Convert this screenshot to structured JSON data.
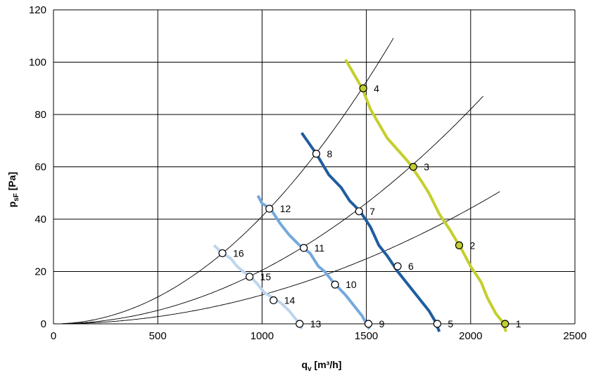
{
  "chart_data": {
    "type": "line",
    "xlabel": "q",
    "xlabel_sub": "v",
    "xlabel_unit": " [m³/h]",
    "ylabel": "p",
    "ylabel_sub": "sF",
    "ylabel_unit": " [Pa]",
    "xlim": [
      0,
      2500
    ],
    "ylim": [
      0,
      120
    ],
    "x_ticks": [
      0,
      500,
      1000,
      1500,
      2000,
      2500
    ],
    "y_ticks": [
      0,
      20,
      40,
      60,
      80,
      100,
      120
    ],
    "x_tick_labels": [
      "0",
      "500",
      "1000",
      "1500",
      "2000",
      "2500"
    ],
    "y_tick_labels": [
      "0",
      "20",
      "40",
      "60",
      "80",
      "100",
      "120"
    ],
    "grid": true,
    "fan_curves": [
      {
        "color": "#c4cf2e",
        "points": [
          [
            1400,
            101
          ],
          [
            1480,
            90
          ],
          [
            1520,
            82
          ],
          [
            1600,
            71
          ],
          [
            1700,
            62
          ],
          [
            1760,
            55
          ],
          [
            1800,
            50
          ],
          [
            1850,
            42
          ],
          [
            1900,
            36
          ],
          [
            1960,
            28
          ],
          [
            2000,
            22
          ],
          [
            2050,
            16
          ],
          [
            2080,
            10
          ],
          [
            2120,
            4
          ],
          [
            2150,
            1
          ],
          [
            2170,
            -3
          ]
        ]
      },
      {
        "color": "#1f5d9e",
        "points": [
          [
            1190,
            73
          ],
          [
            1260,
            65
          ],
          [
            1320,
            57
          ],
          [
            1380,
            52
          ],
          [
            1420,
            47
          ],
          [
            1470,
            43
          ],
          [
            1520,
            37
          ],
          [
            1560,
            30
          ],
          [
            1600,
            26
          ],
          [
            1650,
            20
          ],
          [
            1700,
            15
          ],
          [
            1750,
            10
          ],
          [
            1800,
            5
          ],
          [
            1830,
            1
          ],
          [
            1850,
            -3
          ]
        ]
      },
      {
        "color": "#74a9dc",
        "points": [
          [
            980,
            49
          ],
          [
            1000,
            46
          ],
          [
            1040,
            44
          ],
          [
            1090,
            38
          ],
          [
            1130,
            34
          ],
          [
            1180,
            30
          ],
          [
            1230,
            27
          ],
          [
            1270,
            22
          ],
          [
            1300,
            20
          ],
          [
            1340,
            16
          ],
          [
            1400,
            11
          ],
          [
            1440,
            7
          ],
          [
            1480,
            3
          ],
          [
            1500,
            0
          ],
          [
            1515,
            -2
          ]
        ]
      },
      {
        "color": "#bdd5ec",
        "points": [
          [
            770,
            30
          ],
          [
            810,
            27
          ],
          [
            850,
            25
          ],
          [
            880,
            22
          ],
          [
            910,
            20
          ],
          [
            945,
            18
          ],
          [
            980,
            15
          ],
          [
            1010,
            12
          ],
          [
            1050,
            10
          ],
          [
            1090,
            8
          ],
          [
            1130,
            5
          ],
          [
            1160,
            2
          ],
          [
            1180,
            0
          ],
          [
            1190,
            -2
          ]
        ]
      }
    ],
    "system_curves": [
      {
        "k": 1.104e-05,
        "x_max": 2140
      },
      {
        "k": 2.05e-05,
        "x_max": 2060
      },
      {
        "k": 4.11e-05,
        "x_max": 1630
      }
    ],
    "operating_points": [
      {
        "label": "1",
        "x": 2165,
        "y": 0,
        "fill": "#c4cf2e"
      },
      {
        "label": "2",
        "x": 1945,
        "y": 30,
        "fill": "#c4cf2e"
      },
      {
        "label": "3",
        "x": 1725,
        "y": 60,
        "fill": "#c4cf2e"
      },
      {
        "label": "4",
        "x": 1485,
        "y": 90,
        "fill": "#c4cf2e"
      },
      {
        "label": "5",
        "x": 1840,
        "y": 0,
        "fill": "#ffffff"
      },
      {
        "label": "6",
        "x": 1650,
        "y": 22,
        "fill": "#ffffff"
      },
      {
        "label": "7",
        "x": 1465,
        "y": 43,
        "fill": "#ffffff"
      },
      {
        "label": "8",
        "x": 1260,
        "y": 65,
        "fill": "#ffffff"
      },
      {
        "label": "9",
        "x": 1510,
        "y": 0,
        "fill": "#ffffff"
      },
      {
        "label": "10",
        "x": 1350,
        "y": 15,
        "fill": "#ffffff"
      },
      {
        "label": "11",
        "x": 1200,
        "y": 29,
        "fill": "#ffffff"
      },
      {
        "label": "12",
        "x": 1035,
        "y": 44,
        "fill": "#ffffff"
      },
      {
        "label": "13",
        "x": 1180,
        "y": 0,
        "fill": "#ffffff"
      },
      {
        "label": "14",
        "x": 1055,
        "y": 9,
        "fill": "#ffffff"
      },
      {
        "label": "15",
        "x": 940,
        "y": 18,
        "fill": "#ffffff"
      },
      {
        "label": "16",
        "x": 810,
        "y": 27,
        "fill": "#ffffff"
      }
    ]
  }
}
